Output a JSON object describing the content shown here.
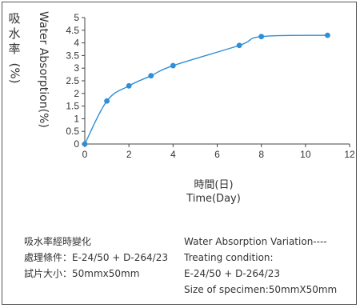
{
  "chart_data": {
    "type": "line",
    "y_title_zh": "吸水率",
    "y_title_unit": "(%)",
    "y_title_en": "Water Absorption(%)",
    "x_title_zh": "時間(日)",
    "x_title_en": "Time(Day)",
    "x_ticks": [
      "0",
      "2",
      "4",
      "6",
      "8",
      "10",
      "12"
    ],
    "y_ticks": [
      "0",
      "0.5",
      "1",
      "1.5",
      "2",
      "2.5",
      "3",
      "3.5",
      "4",
      "4.5",
      "5"
    ],
    "xlim": [
      0,
      12
    ],
    "ylim": [
      0,
      5
    ],
    "grid": false,
    "series": [
      {
        "color": "#2e8fd6",
        "x": [
          0,
          1,
          2,
          3,
          4,
          7,
          8,
          11
        ],
        "y": [
          0,
          1.7,
          2.3,
          2.7,
          3.1,
          3.9,
          4.25,
          4.3
        ]
      }
    ]
  },
  "notes_left": {
    "line1": "吸水率經時變化",
    "line2": "處理條件：E-24/50 + D-264/23",
    "line3": "試片大小：50mmx50mm"
  },
  "notes_right": {
    "line1": "Water Absorption Variation----",
    "line2": "Treating condition:",
    "line3": "E-24/50 + D-264/23",
    "line4": "Size of specimen:50mmX50mm"
  }
}
